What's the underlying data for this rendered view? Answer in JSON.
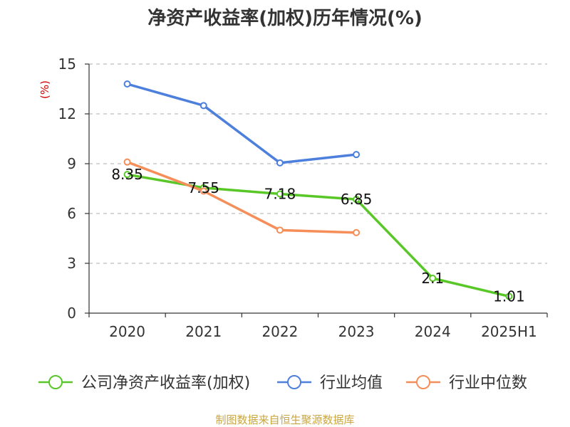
{
  "title": "净资产收益率(加权)历年情况(%)",
  "source": "制图数据来自恒生聚源数据库",
  "chart_data": {
    "type": "line",
    "title": "净资产收益率(加权)历年情况(%)",
    "ylabel": "(%)",
    "xlabel": "",
    "categories": [
      "2020",
      "2021",
      "2022",
      "2023",
      "2024",
      "2025H1"
    ],
    "ylim": [
      0,
      15
    ],
    "yticks": [
      0,
      3,
      6,
      9,
      12,
      15
    ],
    "grid": true,
    "legend": "bottom",
    "series": [
      {
        "name": "公司净资产收益率(加权)",
        "color": "#5ac728",
        "values": [
          8.35,
          7.55,
          7.18,
          6.85,
          2.1,
          1.01
        ],
        "labels": [
          "8.35",
          "7.55",
          "7.18",
          "6.85",
          "2.1",
          "1.01"
        ]
      },
      {
        "name": "行业均值",
        "color": "#4d7fdc",
        "values": [
          13.8,
          12.5,
          9.05,
          9.55,
          null,
          null
        ]
      },
      {
        "name": "行业中位数",
        "color": "#f58e58",
        "values": [
          9.1,
          7.35,
          5.0,
          4.85,
          null,
          null
        ]
      }
    ]
  }
}
